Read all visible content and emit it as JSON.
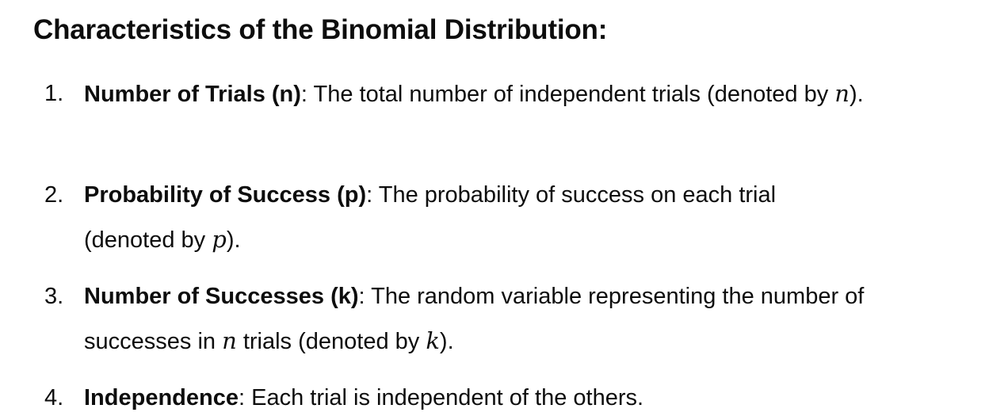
{
  "heading": "Characteristics of the Binomial Distribution:",
  "items": [
    {
      "number": "1.",
      "term": "Number of Trials (n)",
      "colon": ":",
      "text_before": " The total number of independent trials (denoted by ",
      "symbol": "n",
      "text_after": ")."
    },
    {
      "number": "2.",
      "term": "Probability of Success (p)",
      "colon": ":",
      "text_before": " The probability of success on each trial (denoted by ",
      "symbol": "p",
      "text_after": ")."
    },
    {
      "number": "3.",
      "term": "Number of Successes (k)",
      "colon": ":",
      "text_before": " The random variable representing the number of successes in ",
      "symbol": "n",
      "text_middle": " trials (denoted by ",
      "symbol2": "k",
      "text_after": ")."
    },
    {
      "number": "4.",
      "term": "Independence",
      "colon": ":",
      "text_before": " Each trial is independent of the others."
    }
  ]
}
